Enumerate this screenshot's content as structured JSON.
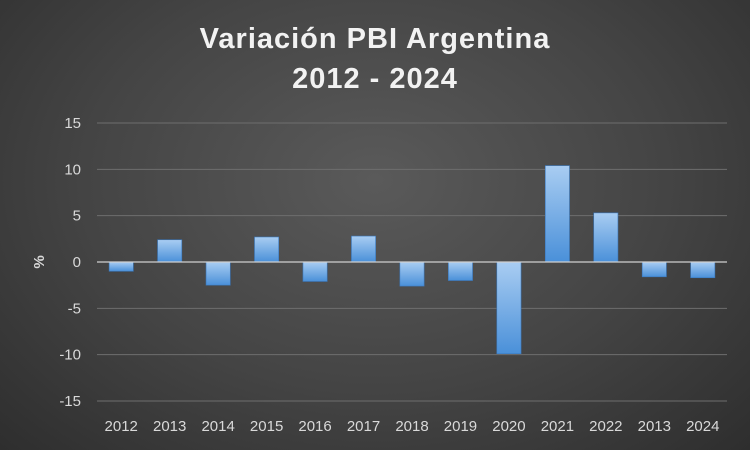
{
  "chart_data": {
    "type": "bar",
    "title_lines": [
      "Variación PBI Argentina",
      "2012 - 2024"
    ],
    "xlabel": "",
    "ylabel": "%",
    "categories": [
      "2012",
      "2013",
      "2014",
      "2015",
      "2016",
      "2017",
      "2018",
      "2019",
      "2020",
      "2021",
      "2022",
      "2013",
      "2024"
    ],
    "values": [
      -1.0,
      2.4,
      -2.5,
      2.7,
      -2.1,
      2.8,
      -2.6,
      -2.0,
      -9.9,
      10.4,
      5.3,
      -1.6,
      -1.7
    ],
    "ylim": [
      -15,
      15
    ],
    "yticks": [
      -15,
      -10,
      -5,
      0,
      5,
      10,
      15
    ],
    "ytick_labels": [
      "-15",
      "-10",
      "-5",
      "0",
      "5",
      "10",
      "15"
    ],
    "grid": true,
    "legend": "none",
    "colors": {
      "bar_top": "#a9cdf2",
      "bar_bottom": "#4a90d9",
      "gridline": "#6e6e6e",
      "zero_line": "#d0d0d0",
      "text": "#d9d9d9",
      "title": "#f2f2f2"
    }
  }
}
